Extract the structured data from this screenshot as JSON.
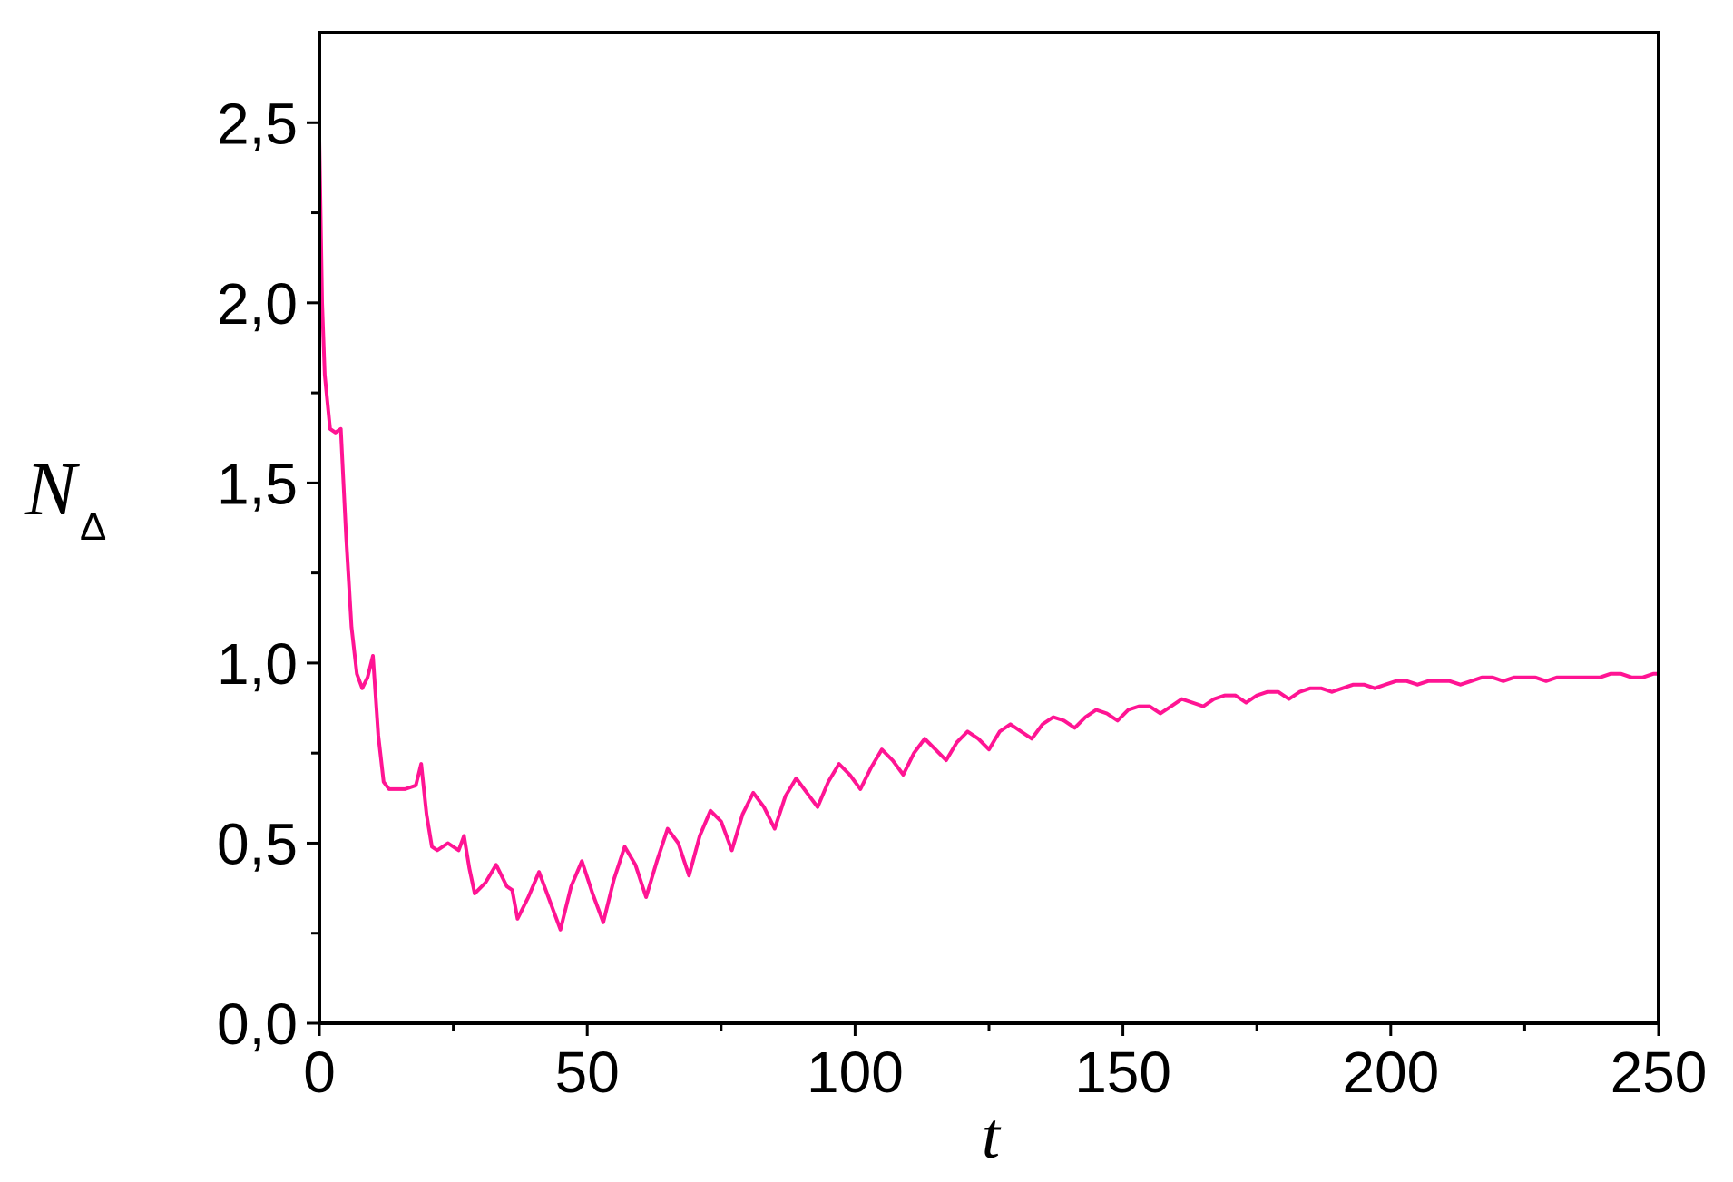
{
  "chart_data": {
    "type": "line",
    "title": "",
    "xlabel": "t",
    "ylabel_main": "N",
    "ylabel_sub": "Δ",
    "xlim": [
      0,
      250
    ],
    "ylim": [
      0,
      2.75
    ],
    "x_ticks": [
      0,
      50,
      100,
      150,
      200,
      250
    ],
    "x_tick_labels": [
      "0",
      "50",
      "100",
      "150",
      "200",
      "250"
    ],
    "x_minor_ticks": [
      25,
      75,
      125,
      175,
      225
    ],
    "y_ticks": [
      0,
      0.5,
      1.0,
      1.5,
      2.0,
      2.5
    ],
    "y_tick_labels": [
      "0,0",
      "0,5",
      "1,0",
      "1,5",
      "2,0",
      "2,5"
    ],
    "y_minor_ticks": [
      0.25,
      0.75,
      1.25,
      1.75,
      2.25
    ],
    "grid": false,
    "legend": "none",
    "series": [
      {
        "color": "#ff1493",
        "x": [
          0,
          0.5,
          1,
          2,
          3,
          4,
          5,
          6,
          7,
          8,
          9,
          10,
          11,
          12,
          13,
          14,
          16,
          18,
          19,
          20,
          21,
          22,
          24,
          26,
          27,
          28,
          29,
          31,
          33,
          35,
          36,
          37,
          39,
          41,
          43,
          45,
          47,
          49,
          51,
          53,
          55,
          57,
          59,
          61,
          63,
          65,
          67,
          69,
          71,
          73,
          75,
          77,
          79,
          81,
          83,
          85,
          87,
          89,
          91,
          93,
          95,
          97,
          99,
          101,
          103,
          105,
          107,
          109,
          111,
          113,
          115,
          117,
          119,
          121,
          123,
          125,
          127,
          129,
          131,
          133,
          135,
          137,
          139,
          141,
          143,
          145,
          147,
          149,
          151,
          153,
          155,
          157,
          159,
          161,
          163,
          165,
          167,
          169,
          171,
          173,
          175,
          177,
          179,
          181,
          183,
          185,
          187,
          189,
          191,
          193,
          195,
          197,
          199,
          201,
          203,
          205,
          207,
          209,
          211,
          213,
          215,
          217,
          219,
          221,
          223,
          225,
          227,
          229,
          231,
          233,
          235,
          237,
          239,
          241,
          243,
          245,
          247,
          249,
          250
        ],
        "y": [
          2.45,
          2.0,
          1.8,
          1.65,
          1.64,
          1.65,
          1.35,
          1.1,
          0.97,
          0.93,
          0.96,
          1.02,
          0.8,
          0.67,
          0.65,
          0.65,
          0.65,
          0.66,
          0.72,
          0.58,
          0.49,
          0.48,
          0.5,
          0.48,
          0.52,
          0.43,
          0.36,
          0.39,
          0.44,
          0.38,
          0.37,
          0.29,
          0.35,
          0.42,
          0.34,
          0.26,
          0.38,
          0.45,
          0.36,
          0.28,
          0.4,
          0.49,
          0.44,
          0.35,
          0.45,
          0.54,
          0.5,
          0.41,
          0.52,
          0.59,
          0.56,
          0.48,
          0.58,
          0.64,
          0.6,
          0.54,
          0.63,
          0.68,
          0.64,
          0.6,
          0.67,
          0.72,
          0.69,
          0.65,
          0.71,
          0.76,
          0.73,
          0.69,
          0.75,
          0.79,
          0.76,
          0.73,
          0.78,
          0.81,
          0.79,
          0.76,
          0.81,
          0.83,
          0.81,
          0.79,
          0.83,
          0.85,
          0.84,
          0.82,
          0.85,
          0.87,
          0.86,
          0.84,
          0.87,
          0.88,
          0.88,
          0.86,
          0.88,
          0.9,
          0.89,
          0.88,
          0.9,
          0.91,
          0.91,
          0.89,
          0.91,
          0.92,
          0.92,
          0.9,
          0.92,
          0.93,
          0.93,
          0.92,
          0.93,
          0.94,
          0.94,
          0.93,
          0.94,
          0.95,
          0.95,
          0.94,
          0.95,
          0.95,
          0.95,
          0.94,
          0.95,
          0.96,
          0.96,
          0.95,
          0.96,
          0.96,
          0.96,
          0.95,
          0.96,
          0.96,
          0.96,
          0.96,
          0.96,
          0.97,
          0.97,
          0.96,
          0.96,
          0.97,
          0.97
        ]
      }
    ]
  }
}
